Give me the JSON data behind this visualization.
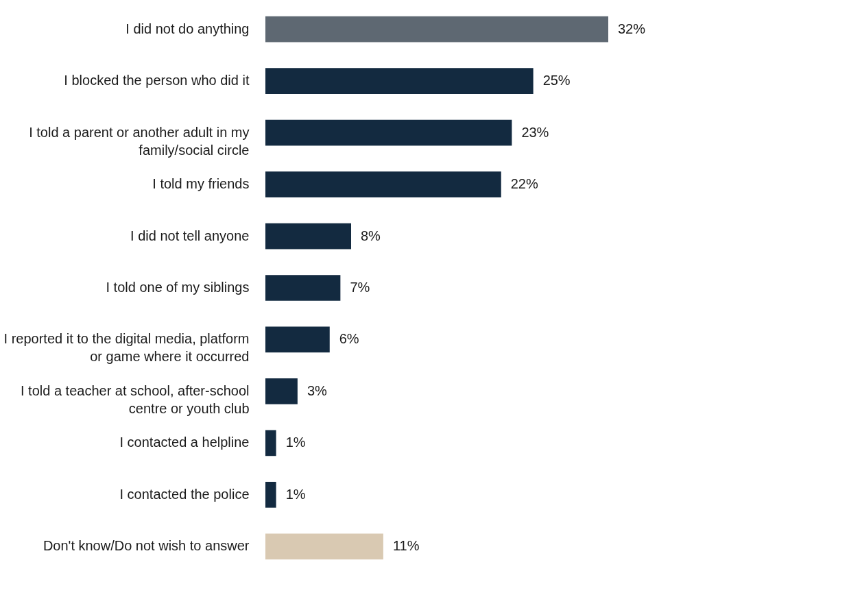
{
  "chart_data": {
    "type": "bar",
    "orientation": "horizontal",
    "categories": [
      "I did not do anything",
      "I blocked the person who did it",
      "I told a parent or another adult in my family/social circle",
      "I told my friends",
      "I did not tell anyone",
      "I told one of my siblings",
      "I reported it to the digital media, platform or game where it occurred",
      "I told a teacher at school, after-school centre or youth club",
      "I contacted a helpline",
      "I contacted the police",
      "Don't know/Do not wish to answer"
    ],
    "values": [
      32,
      25,
      23,
      22,
      8,
      7,
      6,
      3,
      1,
      1,
      11
    ],
    "value_labels": [
      "32%",
      "25%",
      "23%",
      "22%",
      "8%",
      "7%",
      "6%",
      "3%",
      "1%",
      "1%",
      "11%"
    ],
    "colors": [
      "#5e6872",
      "#132a40",
      "#132a40",
      "#132a40",
      "#132a40",
      "#132a40",
      "#132a40",
      "#132a40",
      "#132a40",
      "#132a40",
      "#d9c9b2"
    ],
    "grid": false
  }
}
